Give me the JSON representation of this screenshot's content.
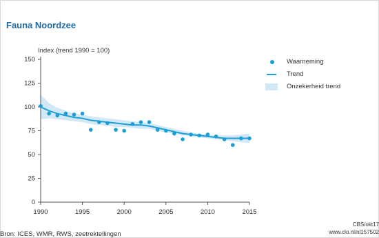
{
  "title": "Fauna Noordzee",
  "source": "Bron: ICES, WMR, RWS, zeetrektellingen",
  "credit_line1": "CBS/okt17",
  "credit_line2": "www.clo.nl/nl157502",
  "colors": {
    "title": "#1f6aa5",
    "series": "#1a9fd7",
    "band": "#d3e8f7",
    "axis": "#555555"
  },
  "chart_data": {
    "type": "scatter",
    "ylabel": "Index (trend 1990 = 100)",
    "xlim": [
      1990,
      2015
    ],
    "ylim": [
      0,
      150
    ],
    "x_ticks": [
      1990,
      1995,
      2000,
      2005,
      2010,
      2015
    ],
    "y_ticks": [
      0,
      25,
      50,
      75,
      100,
      125,
      150
    ],
    "grid": false,
    "legend_position": "right",
    "legend": [
      "Waarneming",
      "Trend",
      "Onzekerheid trend"
    ],
    "series": [
      {
        "name": "Waarneming",
        "type": "scatter",
        "x": [
          1990,
          1991,
          1992,
          1993,
          1994,
          1995,
          1996,
          1997,
          1998,
          1999,
          2000,
          2001,
          2002,
          2003,
          2004,
          2005,
          2006,
          2007,
          2008,
          2009,
          2010,
          2011,
          2012,
          2013,
          2014,
          2015
        ],
        "y": [
          101,
          93,
          91,
          93,
          92,
          93,
          76,
          84,
          83,
          76,
          75,
          82,
          84,
          84,
          76,
          75,
          72,
          66,
          71,
          70,
          71,
          69,
          66,
          60,
          67,
          67
        ]
      },
      {
        "name": "Trend",
        "type": "line",
        "x": [
          1990,
          1991,
          1992,
          1993,
          1994,
          1995,
          1996,
          1997,
          1998,
          1999,
          2000,
          2001,
          2002,
          2003,
          2004,
          2005,
          2006,
          2007,
          2008,
          2009,
          2010,
          2011,
          2012,
          2013,
          2014,
          2015
        ],
        "y": [
          100,
          96,
          93,
          91,
          89,
          88,
          86,
          85,
          84,
          83,
          82,
          81,
          81,
          80,
          78,
          76,
          74,
          72,
          71,
          70,
          69,
          68,
          67,
          67,
          67,
          67
        ]
      },
      {
        "name": "Onzekerheid trend",
        "type": "band",
        "x": [
          1990,
          1991,
          1992,
          1993,
          1994,
          1995,
          1996,
          1997,
          1998,
          1999,
          2000,
          2001,
          2002,
          2003,
          2004,
          2005,
          2006,
          2007,
          2008,
          2009,
          2010,
          2011,
          2012,
          2013,
          2014,
          2015
        ],
        "lower": [
          87,
          88,
          87,
          86,
          85,
          84,
          82,
          81,
          80,
          79,
          79,
          78,
          77,
          77,
          75,
          73,
          72,
          70,
          69,
          68,
          67,
          66,
          65,
          64,
          63,
          62
        ],
        "upper": [
          113,
          104,
          99,
          96,
          93,
          92,
          90,
          89,
          88,
          87,
          86,
          85,
          84,
          83,
          81,
          79,
          77,
          75,
          73,
          72,
          71,
          70,
          70,
          70,
          71,
          72
        ]
      }
    ]
  }
}
